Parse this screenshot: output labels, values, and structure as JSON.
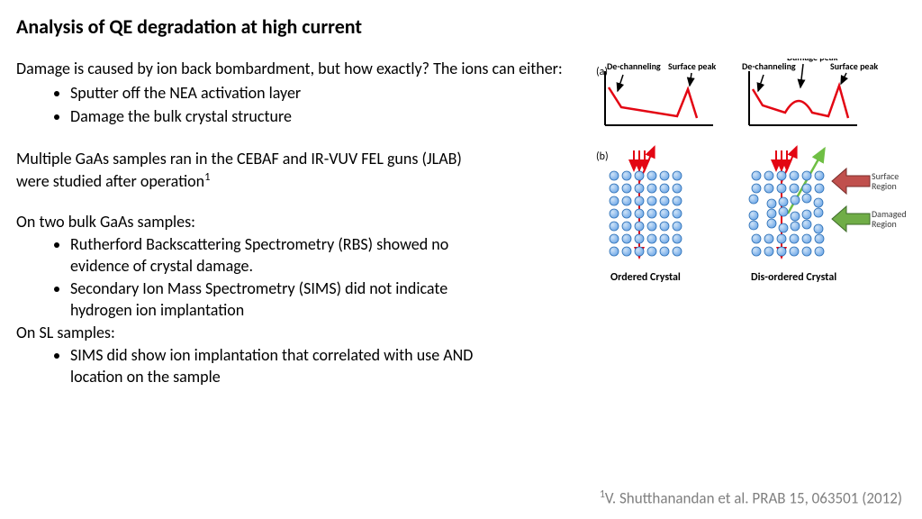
{
  "title": "Analysis of QE degradation at high current",
  "intro": "Damage is caused by ion back bombardment, but how exactly? The ions can either:",
  "bullet1": "Sputter off the NEA activation layer",
  "bullet2": "Damage the bulk crystal structure",
  "para1_a": "Multiple GaAs samples ran in the CEBAF and IR-VUV FEL  guns (JLAB) were studied after operation",
  "para2": "On two bulk GaAs samples:",
  "b2_1": "Rutherford Backscattering Spectrometry (RBS) showed no evidence of crystal damage.",
  "b2_2": "Secondary Ion Mass Spectrometry (SIMS) did not indicate hydrogen ion implantation",
  "para3": "On SL samples:",
  "b3_1": "SIMS did show ion implantation that correlated with use AND location on the sample",
  "citation_a": "V. Shutthanandan et al. PRAB 15, 063501 (2012)",
  "fig": {
    "panel_a_label": "(a)",
    "panel_b_label": "(b)",
    "dechanneling": "De-channeling",
    "surface_peak": "Surface peak",
    "damage_peak": "Damage peak",
    "surface_region": "Surface Region",
    "damaged_region": "Damaged Region",
    "ordered": "Ordered Crystal",
    "disordered": "Dis-ordered Crystal",
    "colors": {
      "curve": "#e30613",
      "axis": "#000000",
      "atom_fill": "#6ea8e8",
      "atom_stroke": "#2c6fb5",
      "beam_red": "#e30613",
      "beam_green": "#6fbf44",
      "arrow_surface": "#c0504d",
      "arrow_damaged": "#70ad47",
      "label_text": "#3a3a3a"
    },
    "atom_radius": 5,
    "atom_spacing": 14,
    "rows": 7,
    "cols": 6
  }
}
